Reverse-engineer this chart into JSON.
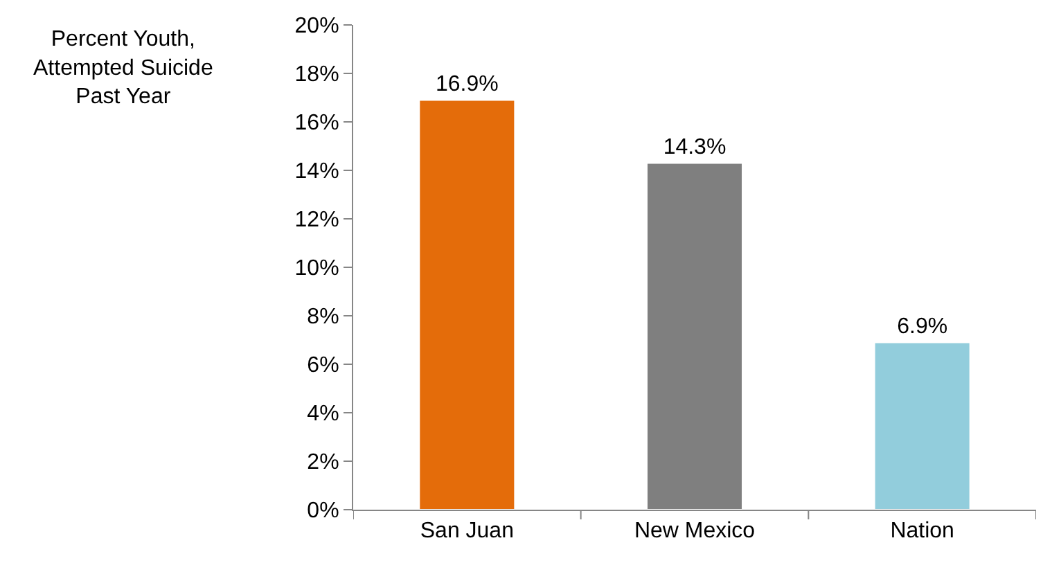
{
  "chart_data": {
    "type": "bar",
    "ylabel": "Percent Youth,\nAttempted Suicide\nPast Year",
    "categories": [
      "San Juan",
      "New Mexico",
      "Nation"
    ],
    "values": [
      16.9,
      14.3,
      6.9
    ],
    "colors": [
      "#e46c0a",
      "#7f7f7f",
      "#92cddc"
    ],
    "value_labels": [
      "16.9%",
      "14.3%",
      "6.9%"
    ],
    "ylim": [
      0,
      20
    ],
    "yticks": [
      {
        "value": 0,
        "label": "0%"
      },
      {
        "value": 2,
        "label": "2%"
      },
      {
        "value": 4,
        "label": "4%"
      },
      {
        "value": 6,
        "label": "6%"
      },
      {
        "value": 8,
        "label": "8%"
      },
      {
        "value": 10,
        "label": "10%"
      },
      {
        "value": 12,
        "label": "12%"
      },
      {
        "value": 14,
        "label": "14%"
      },
      {
        "value": 16,
        "label": "16%"
      },
      {
        "value": 18,
        "label": "18%"
      },
      {
        "value": 20,
        "label": "20%"
      }
    ],
    "grid": false
  }
}
